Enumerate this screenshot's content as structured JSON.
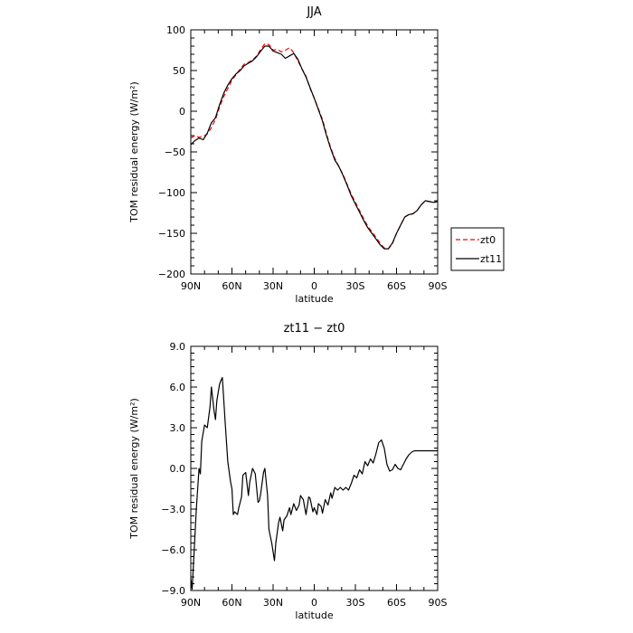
{
  "chart_data": [
    {
      "type": "line",
      "title": "JJA",
      "xlabel": "latitude",
      "ylabel": "TOM residual energy (W/m²)",
      "x_ticks": [
        "90N",
        "60N",
        "30N",
        "0",
        "30S",
        "60S",
        "90S"
      ],
      "y_ticks": [
        "100",
        "50",
        "0",
        "−50",
        "−100",
        "−150",
        "−200"
      ],
      "xlim": [
        90,
        -90
      ],
      "ylim": [
        -200,
        100
      ],
      "grid": false,
      "legend_position": "right",
      "series": [
        {
          "name": "zt0",
          "color": "#ff0000",
          "dash": "dashed",
          "x": [
            90,
            87,
            84,
            81,
            78,
            75,
            72,
            69,
            66,
            63,
            60,
            57,
            54,
            51,
            48,
            45,
            42,
            39,
            36,
            33,
            30,
            27,
            24,
            21,
            18,
            15,
            12,
            9,
            6,
            3,
            0,
            -3,
            -6,
            -9,
            -12,
            -15,
            -18,
            -21,
            -24,
            -27,
            -30,
            -33,
            -36,
            -39,
            -42,
            -45,
            -48,
            -51,
            -54,
            -57,
            -60,
            -63,
            -66,
            -69,
            -72,
            -75,
            -78,
            -81,
            -84,
            -87,
            -90
          ],
          "values": [
            -33,
            -30,
            -32,
            -31,
            -28,
            -20,
            -10,
            5,
            18,
            28,
            38,
            45,
            52,
            58,
            60,
            63,
            68,
            76,
            83,
            82,
            75,
            76,
            73,
            75,
            78,
            72,
            62,
            52,
            43,
            28,
            16,
            3,
            -10,
            -28,
            -45,
            -58,
            -68,
            -78,
            -90,
            -102,
            -112,
            -122,
            -132,
            -141,
            -148,
            -155,
            -162,
            -168,
            -169,
            -163,
            -150,
            -140,
            -130,
            -127,
            -126,
            -122,
            -115,
            -110,
            -111,
            -112,
            -111
          ]
        },
        {
          "name": "zt11",
          "color": "#000000",
          "dash": "solid",
          "x": [
            90,
            87,
            84,
            81,
            78,
            75,
            72,
            69,
            66,
            63,
            60,
            57,
            54,
            51,
            48,
            45,
            42,
            39,
            36,
            33,
            30,
            27,
            24,
            21,
            18,
            15,
            12,
            9,
            6,
            3,
            0,
            -3,
            -6,
            -9,
            -12,
            -15,
            -18,
            -21,
            -24,
            -27,
            -30,
            -33,
            -36,
            -39,
            -42,
            -45,
            -48,
            -51,
            -54,
            -57,
            -60,
            -63,
            -66,
            -69,
            -72,
            -75,
            -78,
            -81,
            -84,
            -87,
            -90
          ],
          "values": [
            -41,
            -36,
            -33,
            -35,
            -27,
            -14,
            -8,
            8,
            22,
            32,
            40,
            46,
            50,
            56,
            59,
            62,
            67,
            74,
            80,
            80,
            74,
            72,
            70,
            65,
            68,
            71,
            64,
            52,
            42,
            29,
            16,
            2,
            -12,
            -30,
            -46,
            -60,
            -68,
            -79,
            -91,
            -104,
            -114,
            -124,
            -134,
            -143,
            -150,
            -157,
            -164,
            -169,
            -169,
            -162,
            -150,
            -140,
            -130,
            -127,
            -126,
            -122,
            -115,
            -110,
            -111,
            -112,
            -111
          ]
        }
      ]
    },
    {
      "type": "line",
      "title": "zt11 − zt0",
      "xlabel": "latitude",
      "ylabel": "TOM residual energy (W/m²)",
      "x_ticks": [
        "90N",
        "60N",
        "30N",
        "0",
        "30S",
        "60S",
        "90S"
      ],
      "y_ticks": [
        "9.0",
        "6.0",
        "3.0",
        "0.0",
        "−3.0",
        "−6.0",
        "−9.0"
      ],
      "xlim": [
        90,
        -90
      ],
      "ylim": [
        -9,
        9
      ],
      "grid": false,
      "series": [
        {
          "color": "#000000",
          "dash": "solid",
          "x": [
            90,
            89,
            88,
            86,
            84,
            83,
            82,
            80,
            78,
            76,
            75,
            73,
            72,
            71,
            69,
            68,
            67,
            65,
            63,
            61,
            60,
            59,
            58,
            56,
            55,
            53,
            52,
            50,
            48,
            47,
            45,
            43,
            41,
            40,
            39,
            37,
            36,
            34,
            33,
            31,
            29,
            28,
            26,
            25,
            23,
            22,
            20,
            18,
            17,
            15,
            13,
            11,
            10,
            8,
            6,
            4,
            3,
            1,
            0,
            -2,
            -3,
            -5,
            -6,
            -8,
            -10,
            -12,
            -13,
            -15,
            -17,
            -19,
            -21,
            -23,
            -25,
            -27,
            -29,
            -31,
            -33,
            -35,
            -37,
            -39,
            -41,
            -43,
            -45,
            -47,
            -49,
            -51,
            -53,
            -55,
            -57,
            -59,
            -61,
            -63,
            -65,
            -67,
            -69,
            -71,
            -73,
            -75,
            -77,
            -79,
            -81,
            -83,
            -85,
            -87,
            -89,
            -90
          ],
          "values": [
            -8.1,
            -8.9,
            -7,
            -3,
            0,
            -0.4,
            2,
            3.2,
            3,
            4.5,
            6,
            4.2,
            3.6,
            5,
            6.2,
            6.5,
            6.7,
            3.5,
            0.5,
            -1,
            -1.5,
            -3.4,
            -3.2,
            -3.4,
            -2.9,
            -2.1,
            -0.5,
            -0.3,
            -2,
            -1,
            0,
            -0.4,
            -2.5,
            -2.4,
            -1.8,
            -0.3,
            0,
            -2,
            -4.5,
            -5.5,
            -6.8,
            -5.5,
            -4,
            -3.6,
            -4.6,
            -3.8,
            -3.5,
            -2.9,
            -3.4,
            -2.6,
            -3.1,
            -2.7,
            -2,
            -2.3,
            -3.4,
            -2.1,
            -2.2,
            -3.2,
            -2.9,
            -3.4,
            -2.6,
            -2.8,
            -3.3,
            -2.3,
            -2.7,
            -1.8,
            -2.2,
            -1.4,
            -1.6,
            -1.4,
            -1.6,
            -1.4,
            -1.6,
            -1.1,
            -0.5,
            -0.7,
            -0.1,
            -0.4,
            0.5,
            0.2,
            0.7,
            0.4,
            1.1,
            1.9,
            2.1,
            1.5,
            0.3,
            -0.2,
            -0.1,
            0.3,
            0.0,
            -0.1,
            0.3,
            0.7,
            1.0,
            1.2,
            1.3,
            1.3,
            1.3,
            1.3,
            1.3,
            1.3,
            1.3,
            1.3,
            1.3,
            1.3
          ]
        }
      ]
    }
  ]
}
